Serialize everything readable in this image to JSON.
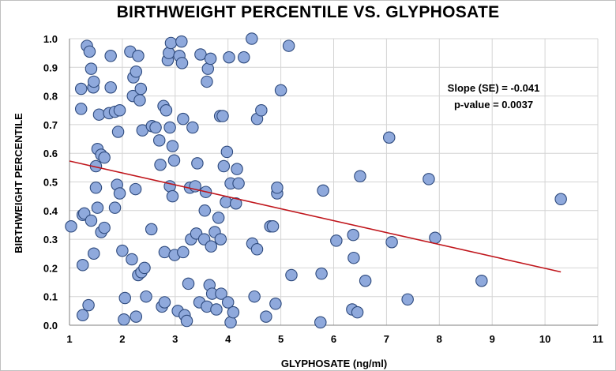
{
  "colors": {
    "point_fill": "#8fa9dc",
    "point_stroke": "#2e4a7d",
    "trend_line": "#c0161c",
    "grid": "#d4d4d4",
    "axis": "#7f7f7f"
  },
  "chart_data": {
    "type": "scatter",
    "title": "BIRTHWEIGHT PERCENTILE VS. GLYPHOSATE",
    "xlabel": "GLYPHOSATE (ng/ml)",
    "ylabel": "BIRTHWEIGHT PERCENTILE",
    "xlim": [
      1,
      11
    ],
    "ylim": [
      0.0,
      1.0
    ],
    "x_ticks": [
      1,
      2,
      3,
      4,
      5,
      6,
      7,
      8,
      9,
      10,
      11
    ],
    "y_ticks": [
      0.0,
      0.1,
      0.2,
      0.3,
      0.4,
      0.5,
      0.6,
      0.7,
      0.8,
      0.9,
      1.0
    ],
    "y_tick_labels": [
      "0.0",
      "0.1",
      "0.2",
      "0.3",
      "0.4",
      "0.5",
      "0.6",
      "0.7",
      "0.8",
      "0.9",
      "1.0"
    ],
    "grid": true,
    "annotations": [
      "Slope (SE) = -0.041",
      "p-value = 0.0037"
    ],
    "trendline": {
      "x": [
        1.0,
        10.3
      ],
      "y": [
        0.573,
        0.186
      ]
    },
    "points": [
      [
        1.03,
        0.345
      ],
      [
        1.22,
        0.755
      ],
      [
        1.22,
        0.825
      ],
      [
        1.25,
        0.21
      ],
      [
        1.25,
        0.035
      ],
      [
        1.25,
        0.385
      ],
      [
        1.28,
        0.39
      ],
      [
        1.33,
        0.975
      ],
      [
        1.36,
        0.07
      ],
      [
        1.38,
        0.955
      ],
      [
        1.41,
        0.365
      ],
      [
        1.41,
        0.895
      ],
      [
        1.45,
        0.83
      ],
      [
        1.46,
        0.25
      ],
      [
        1.46,
        0.85
      ],
      [
        1.5,
        0.555
      ],
      [
        1.5,
        0.48
      ],
      [
        1.53,
        0.41
      ],
      [
        1.53,
        0.615
      ],
      [
        1.56,
        0.735
      ],
      [
        1.6,
        0.595
      ],
      [
        1.6,
        0.325
      ],
      [
        1.66,
        0.585
      ],
      [
        1.66,
        0.34
      ],
      [
        1.75,
        0.74
      ],
      [
        1.78,
        0.94
      ],
      [
        1.78,
        0.83
      ],
      [
        1.86,
        0.41
      ],
      [
        1.86,
        0.745
      ],
      [
        1.9,
        0.49
      ],
      [
        1.92,
        0.675
      ],
      [
        1.95,
        0.75
      ],
      [
        1.95,
        0.46
      ],
      [
        2.0,
        0.26
      ],
      [
        2.03,
        0.02
      ],
      [
        2.05,
        0.095
      ],
      [
        2.15,
        0.955
      ],
      [
        2.18,
        0.23
      ],
      [
        2.2,
        0.8
      ],
      [
        2.21,
        0.865
      ],
      [
        2.25,
        0.475
      ],
      [
        2.26,
        0.885
      ],
      [
        2.26,
        0.03
      ],
      [
        2.3,
        0.94
      ],
      [
        2.3,
        0.175
      ],
      [
        2.33,
        0.785
      ],
      [
        2.35,
        0.825
      ],
      [
        2.36,
        0.185
      ],
      [
        2.38,
        0.68
      ],
      [
        2.42,
        0.2
      ],
      [
        2.45,
        0.1
      ],
      [
        2.55,
        0.335
      ],
      [
        2.56,
        0.695
      ],
      [
        2.63,
        0.69
      ],
      [
        2.7,
        0.645
      ],
      [
        2.72,
        0.56
      ],
      [
        2.75,
        0.065
      ],
      [
        2.78,
        0.765
      ],
      [
        2.8,
        0.255
      ],
      [
        2.8,
        0.08
      ],
      [
        2.83,
        0.75
      ],
      [
        2.86,
        0.925
      ],
      [
        2.88,
        0.95
      ],
      [
        2.9,
        0.69
      ],
      [
        2.9,
        0.485
      ],
      [
        2.92,
        0.985
      ],
      [
        2.95,
        0.45
      ],
      [
        2.95,
        0.625
      ],
      [
        2.98,
        0.575
      ],
      [
        2.99,
        0.245
      ],
      [
        3.05,
        0.05
      ],
      [
        3.08,
        0.94
      ],
      [
        3.12,
        0.99
      ],
      [
        3.13,
        0.915
      ],
      [
        3.15,
        0.72
      ],
      [
        3.15,
        0.255
      ],
      [
        3.18,
        0.035
      ],
      [
        3.22,
        0.015
      ],
      [
        3.25,
        0.145
      ],
      [
        3.28,
        0.48
      ],
      [
        3.3,
        0.3
      ],
      [
        3.33,
        0.69
      ],
      [
        3.38,
        0.485
      ],
      [
        3.4,
        0.32
      ],
      [
        3.42,
        0.565
      ],
      [
        3.46,
        0.08
      ],
      [
        3.48,
        0.945
      ],
      [
        3.55,
        0.3
      ],
      [
        3.56,
        0.4
      ],
      [
        3.58,
        0.465
      ],
      [
        3.6,
        0.85
      ],
      [
        3.6,
        0.065
      ],
      [
        3.62,
        0.895
      ],
      [
        3.65,
        0.14
      ],
      [
        3.67,
        0.93
      ],
      [
        3.68,
        0.275
      ],
      [
        3.7,
        0.11
      ],
      [
        3.75,
        0.325
      ],
      [
        3.78,
        0.055
      ],
      [
        3.82,
        0.375
      ],
      [
        3.85,
        0.73
      ],
      [
        3.86,
        0.3
      ],
      [
        3.87,
        0.11
      ],
      [
        3.9,
        0.73
      ],
      [
        3.92,
        0.555
      ],
      [
        3.96,
        0.43
      ],
      [
        3.98,
        0.605
      ],
      [
        4.0,
        0.08
      ],
      [
        4.02,
        0.935
      ],
      [
        4.05,
        0.495
      ],
      [
        4.05,
        0.01
      ],
      [
        4.1,
        0.045
      ],
      [
        4.15,
        0.425
      ],
      [
        4.17,
        0.545
      ],
      [
        4.2,
        0.495
      ],
      [
        4.3,
        0.935
      ],
      [
        4.45,
        1.0
      ],
      [
        4.46,
        0.285
      ],
      [
        4.5,
        0.1
      ],
      [
        4.55,
        0.72
      ],
      [
        4.55,
        0.265
      ],
      [
        4.63,
        0.75
      ],
      [
        4.72,
        0.03
      ],
      [
        4.8,
        0.345
      ],
      [
        4.85,
        0.345
      ],
      [
        4.9,
        0.075
      ],
      [
        4.93,
        0.46
      ],
      [
        4.93,
        0.48
      ],
      [
        5.0,
        0.82
      ],
      [
        5.15,
        0.975
      ],
      [
        5.2,
        0.175
      ],
      [
        5.75,
        0.01
      ],
      [
        5.77,
        0.18
      ],
      [
        5.8,
        0.47
      ],
      [
        6.05,
        0.295
      ],
      [
        6.35,
        0.055
      ],
      [
        6.37,
        0.315
      ],
      [
        6.38,
        0.235
      ],
      [
        6.45,
        0.045
      ],
      [
        6.5,
        0.52
      ],
      [
        6.6,
        0.155
      ],
      [
        7.05,
        0.655
      ],
      [
        7.1,
        0.29
      ],
      [
        7.4,
        0.09
      ],
      [
        7.8,
        0.51
      ],
      [
        7.92,
        0.305
      ],
      [
        8.8,
        0.155
      ],
      [
        10.3,
        0.44
      ]
    ]
  }
}
